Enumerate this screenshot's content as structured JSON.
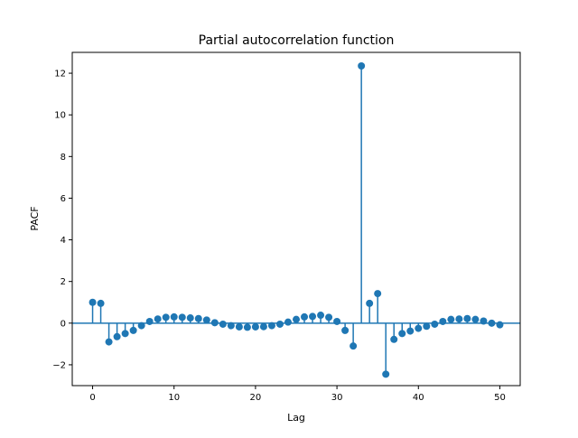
{
  "chart_data": {
    "type": "stem",
    "title": "Partial autocorrelation function",
    "xlabel": "Lag",
    "ylabel": "PACF",
    "xlim": [
      -2.5,
      52.5
    ],
    "ylim": [
      -3.0,
      13.0
    ],
    "x_ticks": [
      0,
      10,
      20,
      30,
      40,
      50
    ],
    "y_ticks": [
      -2,
      0,
      2,
      4,
      6,
      8,
      10,
      12
    ],
    "y_tick_labels": [
      "−2",
      "0",
      "2",
      "4",
      "6",
      "8",
      "10",
      "12"
    ],
    "baseline": 0,
    "grid": false,
    "color": "#1f77b4",
    "x": [
      0,
      1,
      2,
      3,
      4,
      5,
      6,
      7,
      8,
      9,
      10,
      11,
      12,
      13,
      14,
      15,
      16,
      17,
      18,
      19,
      20,
      21,
      22,
      23,
      24,
      25,
      26,
      27,
      28,
      29,
      30,
      31,
      32,
      33,
      34,
      35,
      36,
      37,
      38,
      39,
      40,
      41,
      42,
      43,
      44,
      45,
      46,
      47,
      48,
      49,
      50
    ],
    "values": [
      1.0,
      0.95,
      -0.9,
      -0.65,
      -0.5,
      -0.35,
      -0.12,
      0.08,
      0.2,
      0.28,
      0.3,
      0.28,
      0.25,
      0.22,
      0.15,
      0.02,
      -0.05,
      -0.12,
      -0.18,
      -0.2,
      -0.18,
      -0.17,
      -0.12,
      -0.05,
      0.05,
      0.18,
      0.3,
      0.32,
      0.38,
      0.28,
      0.08,
      -0.35,
      -1.1,
      12.35,
      0.95,
      1.42,
      -2.45,
      -0.78,
      -0.5,
      -0.38,
      -0.25,
      -0.15,
      -0.05,
      0.08,
      0.18,
      0.2,
      0.22,
      0.18,
      0.1,
      0.0,
      -0.08
    ]
  }
}
